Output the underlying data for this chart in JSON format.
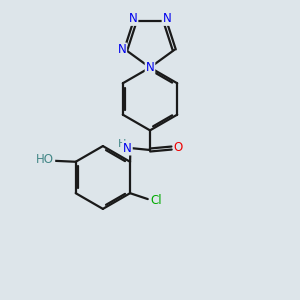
{
  "bg_color": "#dde5ea",
  "bond_color": "#1a1a1a",
  "bond_width": 1.6,
  "dbo": 0.018,
  "atom_colors": {
    "N": "#0000ee",
    "O": "#ee0000",
    "Cl": "#00aa00",
    "HO": "#448888",
    "NH": "#0000ee",
    "C": "#1a1a1a"
  },
  "font_size": 8.5,
  "fig_size": [
    3.0,
    3.0
  ],
  "dpi": 100
}
